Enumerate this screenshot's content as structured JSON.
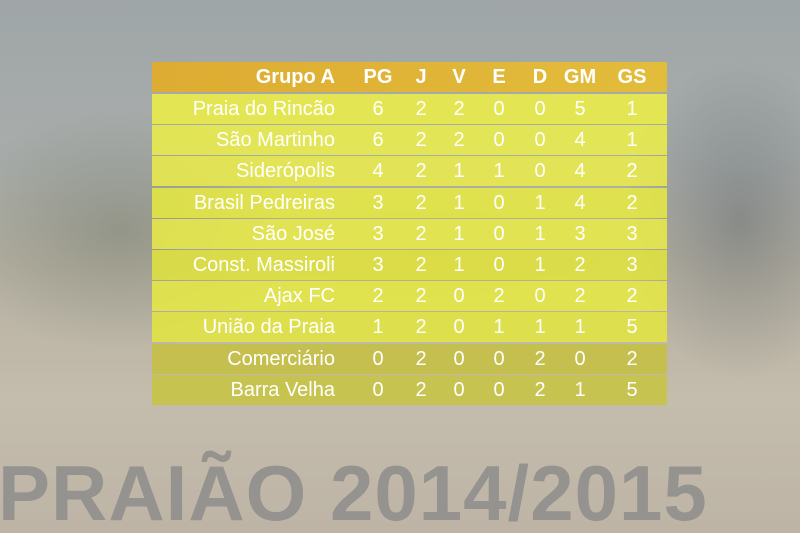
{
  "table": {
    "header": [
      "Grupo A",
      "PG",
      "J",
      "V",
      "E",
      "D",
      "GM",
      "GS"
    ],
    "rows": [
      [
        "Praia do Rincão",
        6,
        2,
        2,
        0,
        0,
        5,
        1
      ],
      [
        "São Martinho",
        6,
        2,
        2,
        0,
        0,
        4,
        1
      ],
      [
        "Siderópolis",
        4,
        2,
        1,
        1,
        0,
        4,
        2
      ],
      [
        "Brasil Pedreiras",
        3,
        2,
        1,
        0,
        1,
        4,
        2
      ],
      [
        "São José",
        3,
        2,
        1,
        0,
        1,
        3,
        3
      ],
      [
        "Const. Massiroli",
        3,
        2,
        1,
        0,
        1,
        2,
        3
      ],
      [
        "Ajax FC",
        2,
        2,
        0,
        2,
        0,
        2,
        2
      ],
      [
        "União da Praia",
        1,
        2,
        0,
        1,
        1,
        1,
        5
      ],
      [
        "Comerciário",
        0,
        2,
        0,
        0,
        2,
        0,
        2
      ],
      [
        "Barra Velha",
        0,
        2,
        0,
        0,
        2,
        1,
        5
      ]
    ]
  },
  "watermark": "PRAIÃO 2014/2015"
}
